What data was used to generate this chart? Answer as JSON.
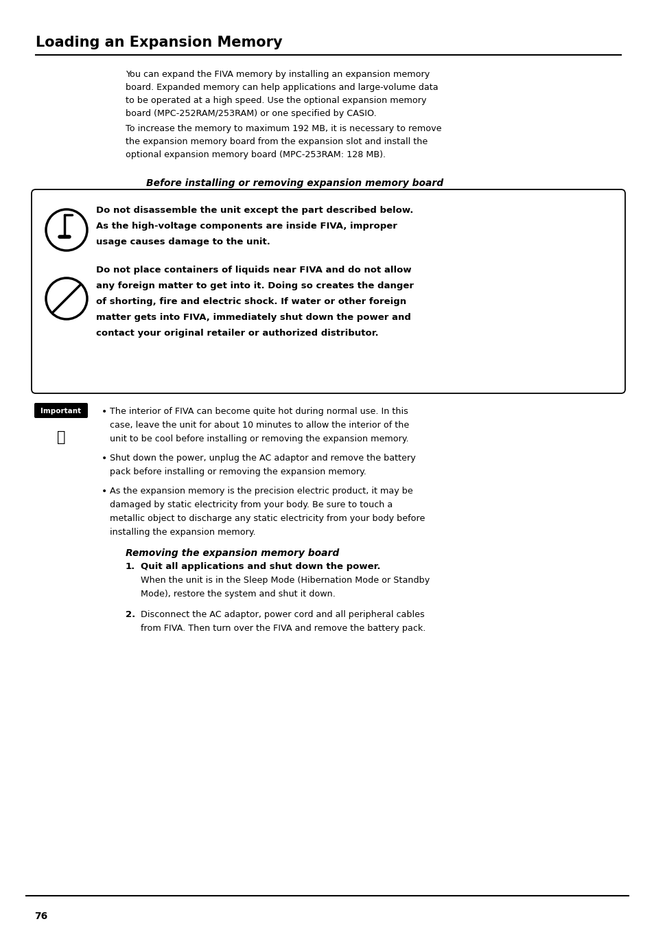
{
  "title": "Loading an Expansion Memory",
  "bg_color": "#ffffff",
  "text_color": "#000000",
  "page_number": "76",
  "para1_lines": [
    "You can expand the FIVA memory by installing an expansion memory",
    "board. Expanded memory can help applications and large-volume data",
    "to be operated at a high speed. Use the optional expansion memory",
    "board (MPC-252RAM/253RAM) or one specified by CASIO."
  ],
  "para2_lines": [
    "To increase the memory to maximum 192 MB, it is necessary to remove",
    "the expansion memory board from the expansion slot and install the",
    "optional expansion memory board (MPC-253RAM: 128 MB)."
  ],
  "before_heading": "Before installing or removing expansion memory board",
  "w1_lines": [
    "Do not disassemble the unit except the part described below.",
    "As the high-voltage components are inside FIVA, improper",
    "usage causes damage to the unit."
  ],
  "w2_lines": [
    "Do not place containers of liquids near FIVA and do not allow",
    "any foreign matter to get into it. Doing so creates the danger",
    "of shorting, fire and electric shock. If water or other foreign",
    "matter gets into FIVA, immediately shut down the power and",
    "contact your original retailer or authorized distributor."
  ],
  "important_label": "Important",
  "b1_lines": [
    "The interior of FIVA can become quite hot during normal use. In this",
    "case, leave the unit for about 10 minutes to allow the interior of the",
    "unit to be cool before installing or removing the expansion memory."
  ],
  "b2_lines": [
    "Shut down the power, unplug the AC adaptor and remove the battery",
    "pack before installing or removing the expansion memory."
  ],
  "b3_lines": [
    "As the expansion memory is the precision electric product, it may be",
    "damaged by static electricity from your body. Be sure to touch a",
    "metallic object to discharge any static electricity from your body before",
    "installing the expansion memory."
  ],
  "removing_heading": "Removing the expansion memory board",
  "step1_bold": "Quit all applications and shut down the power.",
  "step1_sub": [
    "When the unit is in the Sleep Mode (Hibernation Mode or Standby",
    "Mode), restore the system and shut it down."
  ],
  "step2_lines": [
    "Disconnect the AC adaptor, power cord and all peripheral cables",
    "from FIVA. Then turn over the FIVA and remove the battery pack."
  ]
}
